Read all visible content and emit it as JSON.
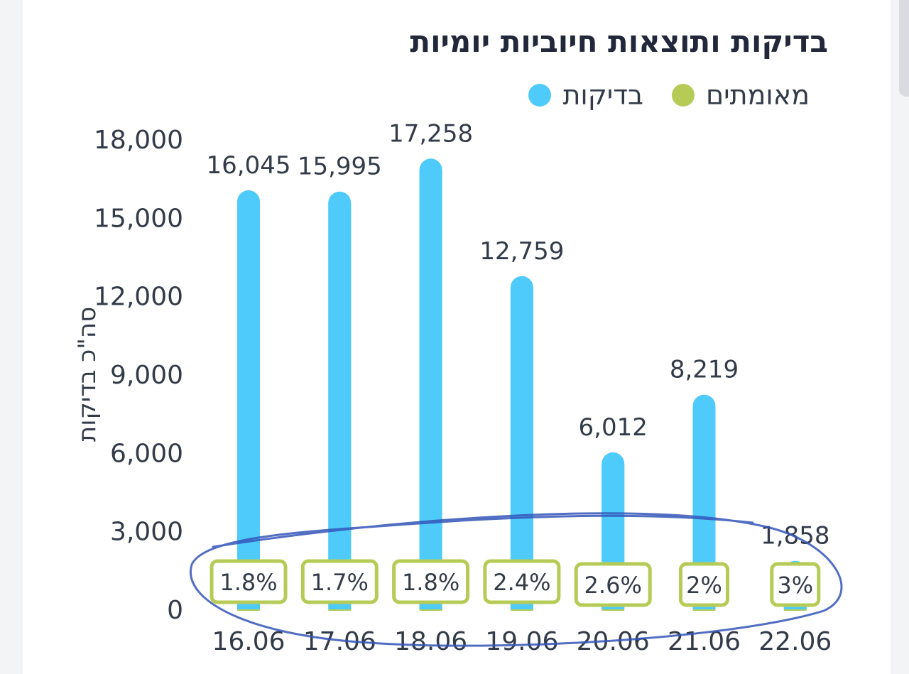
{
  "title": "בדיקות ותוצאות חיוביות יומיות",
  "legend": [
    {
      "label": "בדיקות",
      "color": "#4ecbfb"
    },
    {
      "label": "מאומתים",
      "color": "#b5cb56"
    }
  ],
  "colors": {
    "tests": "#4ecbfb",
    "positive": "#b5cb56",
    "axis_text": "#333b49",
    "annotation": "#3455b8"
  },
  "chart_data": {
    "type": "bar",
    "title": "בדיקות ותוצאות חיוביות יומיות",
    "ylabel": "סה\"כ בדיקות",
    "xlabel": "",
    "ylim": [
      0,
      18000
    ],
    "yticks": [
      "0",
      "3,000",
      "6,000",
      "9,000",
      "12,000",
      "15,000",
      "18,000"
    ],
    "ytick_values": [
      0,
      3000,
      6000,
      9000,
      12000,
      15000,
      18000
    ],
    "grid": false,
    "legend_position": "top-right",
    "categories": [
      "16.06",
      "17.06",
      "18.06",
      "19.06",
      "20.06",
      "21.06",
      "22.06"
    ],
    "series": [
      {
        "name": "בדיקות",
        "values": [
          16045,
          15995,
          17258,
          12759,
          6012,
          8219,
          1858
        ],
        "labels": [
          "16,045",
          "15,995",
          "17,258",
          "12,759",
          "6,012",
          "8,219",
          "1,858"
        ]
      },
      {
        "name": "מאומתים",
        "values": [
          1.8,
          1.7,
          1.8,
          2.4,
          2.6,
          2,
          3
        ],
        "labels": [
          "1.8%",
          "1.7%",
          "1.8%",
          "2.4%",
          "2.6%",
          "2%",
          "3%"
        ]
      }
    ]
  }
}
